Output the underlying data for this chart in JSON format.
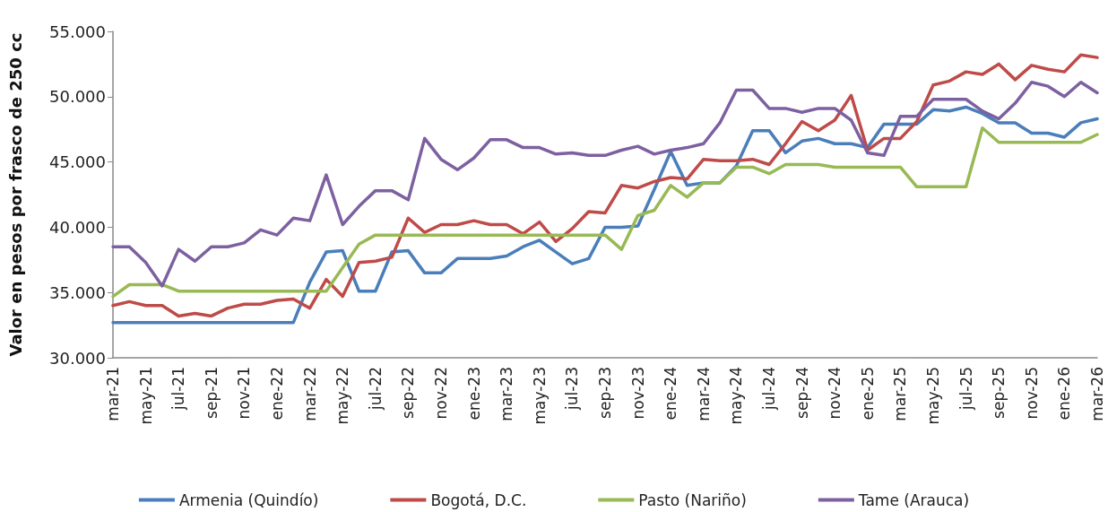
{
  "chart_data": {
    "type": "line",
    "ylabel": "Valor en pesos por frasco de 250 cc",
    "categories": [
      "mar-21",
      null,
      "may-21",
      null,
      "jul-21",
      null,
      "sep-21",
      null,
      "nov-21",
      null,
      "ene-22",
      null,
      "mar-22",
      null,
      "may-22",
      null,
      "jul-22",
      null,
      "sep-22",
      null,
      "nov-22",
      null,
      "ene-23",
      null,
      "mar-23",
      null,
      "may-23",
      null,
      "jul-23",
      null,
      "sep-23",
      null,
      "nov-23",
      null,
      "ene-24",
      null,
      "mar-24",
      null,
      "may-24",
      null,
      "jul-24",
      null,
      "sep-24",
      null,
      "nov-24",
      null,
      "ene-25",
      null,
      "mar-25",
      null,
      "may-25",
      null,
      "jul-25",
      null,
      "sep-25",
      null,
      "nov-25",
      null,
      "ene-26",
      null,
      "mar-26"
    ],
    "series": [
      {
        "name": "Armenia (Quindío)",
        "color": "#4a7ebb",
        "values": [
          32700,
          32700,
          32700,
          32700,
          32700,
          32700,
          32700,
          32700,
          32700,
          32700,
          32700,
          32700,
          35800,
          38100,
          38200,
          35100,
          35100,
          38100,
          38200,
          36500,
          36500,
          37600,
          37600,
          37600,
          37800,
          38500,
          39000,
          38100,
          37200,
          37600,
          40000,
          40000,
          40100,
          42900,
          45800,
          43200,
          43400,
          43400,
          44700,
          47400,
          47400,
          45700,
          46600,
          46800,
          46400,
          46400,
          46100,
          47900,
          47900,
          47900,
          49000,
          48900,
          49200,
          48700,
          48000,
          48000,
          47200,
          47200,
          46900,
          48000,
          48300
        ]
      },
      {
        "name": "Bogotá, D.C.",
        "color": "#be4b48",
        "values": [
          34000,
          34300,
          34000,
          34000,
          33200,
          33400,
          33200,
          33800,
          34100,
          34100,
          34400,
          34500,
          33800,
          36000,
          34700,
          37300,
          37400,
          37700,
          40700,
          39600,
          40200,
          40200,
          40500,
          40200,
          40200,
          39500,
          40400,
          38900,
          39900,
          41200,
          41100,
          43200,
          43000,
          43500,
          43800,
          43700,
          45200,
          45100,
          45100,
          45200,
          44800,
          46400,
          48100,
          47400,
          48200,
          50100,
          45900,
          46800,
          46800,
          48100,
          50900,
          51200,
          51900,
          51700,
          52500,
          51300,
          52400,
          52100,
          51900,
          53200,
          53000
        ]
      },
      {
        "name": "Pasto (Nariño)",
        "color": "#98b954",
        "values": [
          34700,
          35600,
          35600,
          35600,
          35100,
          35100,
          35100,
          35100,
          35100,
          35100,
          35100,
          35100,
          35100,
          35100,
          36900,
          38700,
          39400,
          39400,
          39400,
          39400,
          39400,
          39400,
          39400,
          39400,
          39400,
          39400,
          39400,
          39400,
          39400,
          39400,
          39400,
          38300,
          40900,
          41300,
          43200,
          42300,
          43400,
          43400,
          44600,
          44600,
          44100,
          44800,
          44800,
          44800,
          44600,
          44600,
          44600,
          44600,
          44600,
          43100,
          43100,
          43100,
          43100,
          47600,
          46500,
          46500,
          46500,
          46500,
          46500,
          46500,
          47100
        ]
      },
      {
        "name": "Tame (Arauca)",
        "color": "#7d60a0",
        "values": [
          38500,
          38500,
          37300,
          35500,
          38300,
          37400,
          38500,
          38500,
          38800,
          39800,
          39400,
          40700,
          40500,
          44000,
          40200,
          41600,
          42800,
          42800,
          42100,
          46800,
          45200,
          44400,
          45300,
          46700,
          46700,
          46100,
          46100,
          45600,
          45700,
          45500,
          45500,
          45900,
          46200,
          45600,
          45900,
          46100,
          46400,
          48000,
          50500,
          50500,
          49100,
          49100,
          48800,
          49100,
          49100,
          48200,
          45700,
          45500,
          48500,
          48500,
          49800,
          49800,
          49800,
          48900,
          48300,
          49500,
          51100,
          50800,
          50000,
          51100,
          50300
        ]
      }
    ],
    "ylim": [
      30000,
      55000
    ],
    "yticks": [
      {
        "value": 30000,
        "label": "30.000"
      },
      {
        "value": 35000,
        "label": "35.000"
      },
      {
        "value": 40000,
        "label": "40.000"
      },
      {
        "value": 45000,
        "label": "45.000"
      },
      {
        "value": 50000,
        "label": "50.000"
      },
      {
        "value": 55000,
        "label": "55.000"
      }
    ],
    "grid": false,
    "legend": "bottom",
    "marker": "none",
    "line_style": "solid"
  }
}
